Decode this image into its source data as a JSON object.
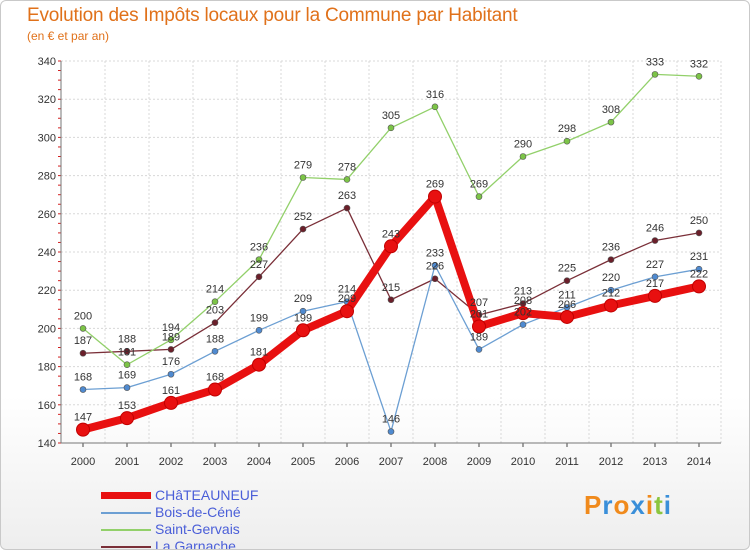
{
  "title": "Evolution des Impôts locaux pour la Commune par Habitant",
  "subtitle": "(en € et par an)",
  "logo": {
    "text": "Proxiti",
    "letters": [
      "P",
      "r",
      "o",
      "x",
      "i",
      "t",
      "i"
    ],
    "colors": [
      "#f08a1c",
      "#3a8fd9",
      "#f08a1c",
      "#3a8fd9",
      "#f08a1c",
      "#8cc63f",
      "#3a8fd9"
    ]
  },
  "chart_data": {
    "type": "line",
    "title": "Evolution des Impôts locaux pour la Commune par Habitant",
    "ylabel": "(en € et par an)",
    "xlabel": "",
    "x": [
      "2000",
      "2001",
      "2002",
      "2003",
      "2004",
      "2005",
      "2006",
      "2007",
      "2008",
      "2009",
      "2010",
      "2011",
      "2012",
      "2013",
      "2014"
    ],
    "ylim": [
      140,
      340
    ],
    "yticks": [
      140,
      160,
      180,
      200,
      220,
      240,
      260,
      280,
      300,
      320,
      340
    ],
    "grid": true,
    "legend_position": "bottom-left",
    "series": [
      {
        "name": "CHâTEAUNEUF",
        "color": "#e81010",
        "point_color": "#e81010",
        "bold": true,
        "values": [
          147,
          153,
          161,
          168,
          181,
          199,
          209,
          243,
          269,
          201,
          208,
          206,
          212,
          217,
          222
        ]
      },
      {
        "name": "Bois-de-Céné",
        "color": "#6c9fd3",
        "point_color": "#4f8ad0",
        "bold": false,
        "values": [
          168,
          169,
          176,
          188,
          199,
          209,
          214,
          146,
          233,
          189,
          202,
          211,
          220,
          227,
          231
        ]
      },
      {
        "name": "Saint-Gervais",
        "color": "#92d06a",
        "point_color": "#7cc447",
        "bold": false,
        "values": [
          200,
          181,
          194,
          214,
          236,
          279,
          278,
          305,
          316,
          269,
          290,
          298,
          308,
          333,
          332
        ]
      },
      {
        "name": "La Garnache",
        "color": "#7a2f38",
        "point_color": "#6b1f2a",
        "bold": false,
        "values": [
          187,
          188,
          189,
          203,
          227,
          252,
          263,
          215,
          226,
          207,
          213,
          225,
          236,
          246,
          250
        ]
      }
    ]
  }
}
